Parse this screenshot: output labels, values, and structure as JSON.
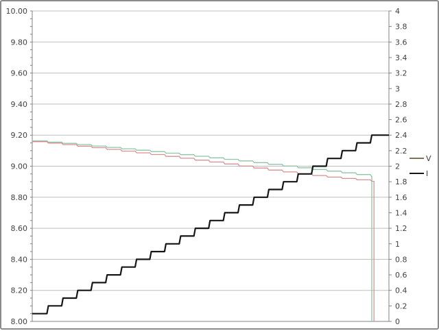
{
  "chart_data": {
    "type": "line",
    "title": "",
    "xlabel": "",
    "ylabel_left": "",
    "ylabel_right": "",
    "grid_color": "#bdbdbd",
    "axis_color": "#808080",
    "label_color": "#3f3f3f",
    "legend": {
      "position": "right",
      "entries": [
        {
          "label": "V",
          "color": "#7b7257"
        },
        {
          "label": "I",
          "color": "#161616"
        }
      ]
    },
    "axes": {
      "left": {
        "min": 8.0,
        "max": 10.0,
        "minor_tick_step": 0.05,
        "labels": [
          "10.00",
          "9.80",
          "9.60",
          "9.40",
          "9.20",
          "9.00",
          "8.80",
          "8.60",
          "8.40",
          "8.20",
          "8.00"
        ],
        "gridlines": true
      },
      "right": {
        "min": 0,
        "max": 4,
        "labels": [
          "4",
          "3.8",
          "3.6",
          "3.4",
          "3.2",
          "3",
          "2.8",
          "2.6",
          "2.4",
          "2.2",
          "2",
          "1.8",
          "1.6",
          "1.4",
          "1.2",
          "1",
          "0.8",
          "0.6",
          "0.4",
          "0.2",
          "0"
        ]
      },
      "x": {
        "labels_visible": false
      }
    },
    "series": [
      {
        "name": "V (upper trace)",
        "legend": "V",
        "axis": "left",
        "color": "#8fc4a5",
        "width": 1.3,
        "staircase": {
          "x0": 0,
          "step": 0.04121,
          "slant": 0.004,
          "values": [
            9.163,
            9.155,
            9.147,
            9.139,
            9.13,
            9.121,
            9.112,
            9.103,
            9.094,
            9.084,
            9.074,
            9.064,
            9.054,
            9.044,
            9.034,
            9.023,
            9.012,
            9.001,
            8.99,
            8.979,
            8.968,
            8.957,
            8.946,
            8.933
          ],
          "end": 0.952,
          "drop_to": 8.0
        }
      },
      {
        "name": "V (lower trace)",
        "legend": "V",
        "axis": "left",
        "color": "#d98f8f",
        "width": 1.3,
        "staircase": {
          "x0": 0,
          "step": 0.04121,
          "slant": 0.004,
          "values": [
            9.158,
            9.149,
            9.139,
            9.129,
            9.119,
            9.108,
            9.097,
            9.086,
            9.075,
            9.063,
            9.051,
            9.039,
            9.027,
            9.014,
            9.001,
            8.988,
            8.975,
            8.963,
            8.951,
            8.94,
            8.93,
            8.921,
            8.912,
            8.903
          ],
          "end": 0.958,
          "drop_to": 8.0
        }
      },
      {
        "name": "I",
        "legend": "I",
        "axis": "right",
        "color": "#161616",
        "width": 2.2,
        "staircase": {
          "x0": 0,
          "step": 0.04121,
          "slant": 0.004,
          "values": [
            0.1,
            0.2,
            0.3,
            0.4,
            0.5,
            0.6,
            0.7,
            0.8,
            0.9,
            1.0,
            1.1,
            1.2,
            1.3,
            1.4,
            1.5,
            1.6,
            1.7,
            1.8,
            1.9,
            2.0,
            2.1,
            2.2,
            2.3,
            2.4
          ],
          "end": 1.0
        }
      }
    ]
  }
}
